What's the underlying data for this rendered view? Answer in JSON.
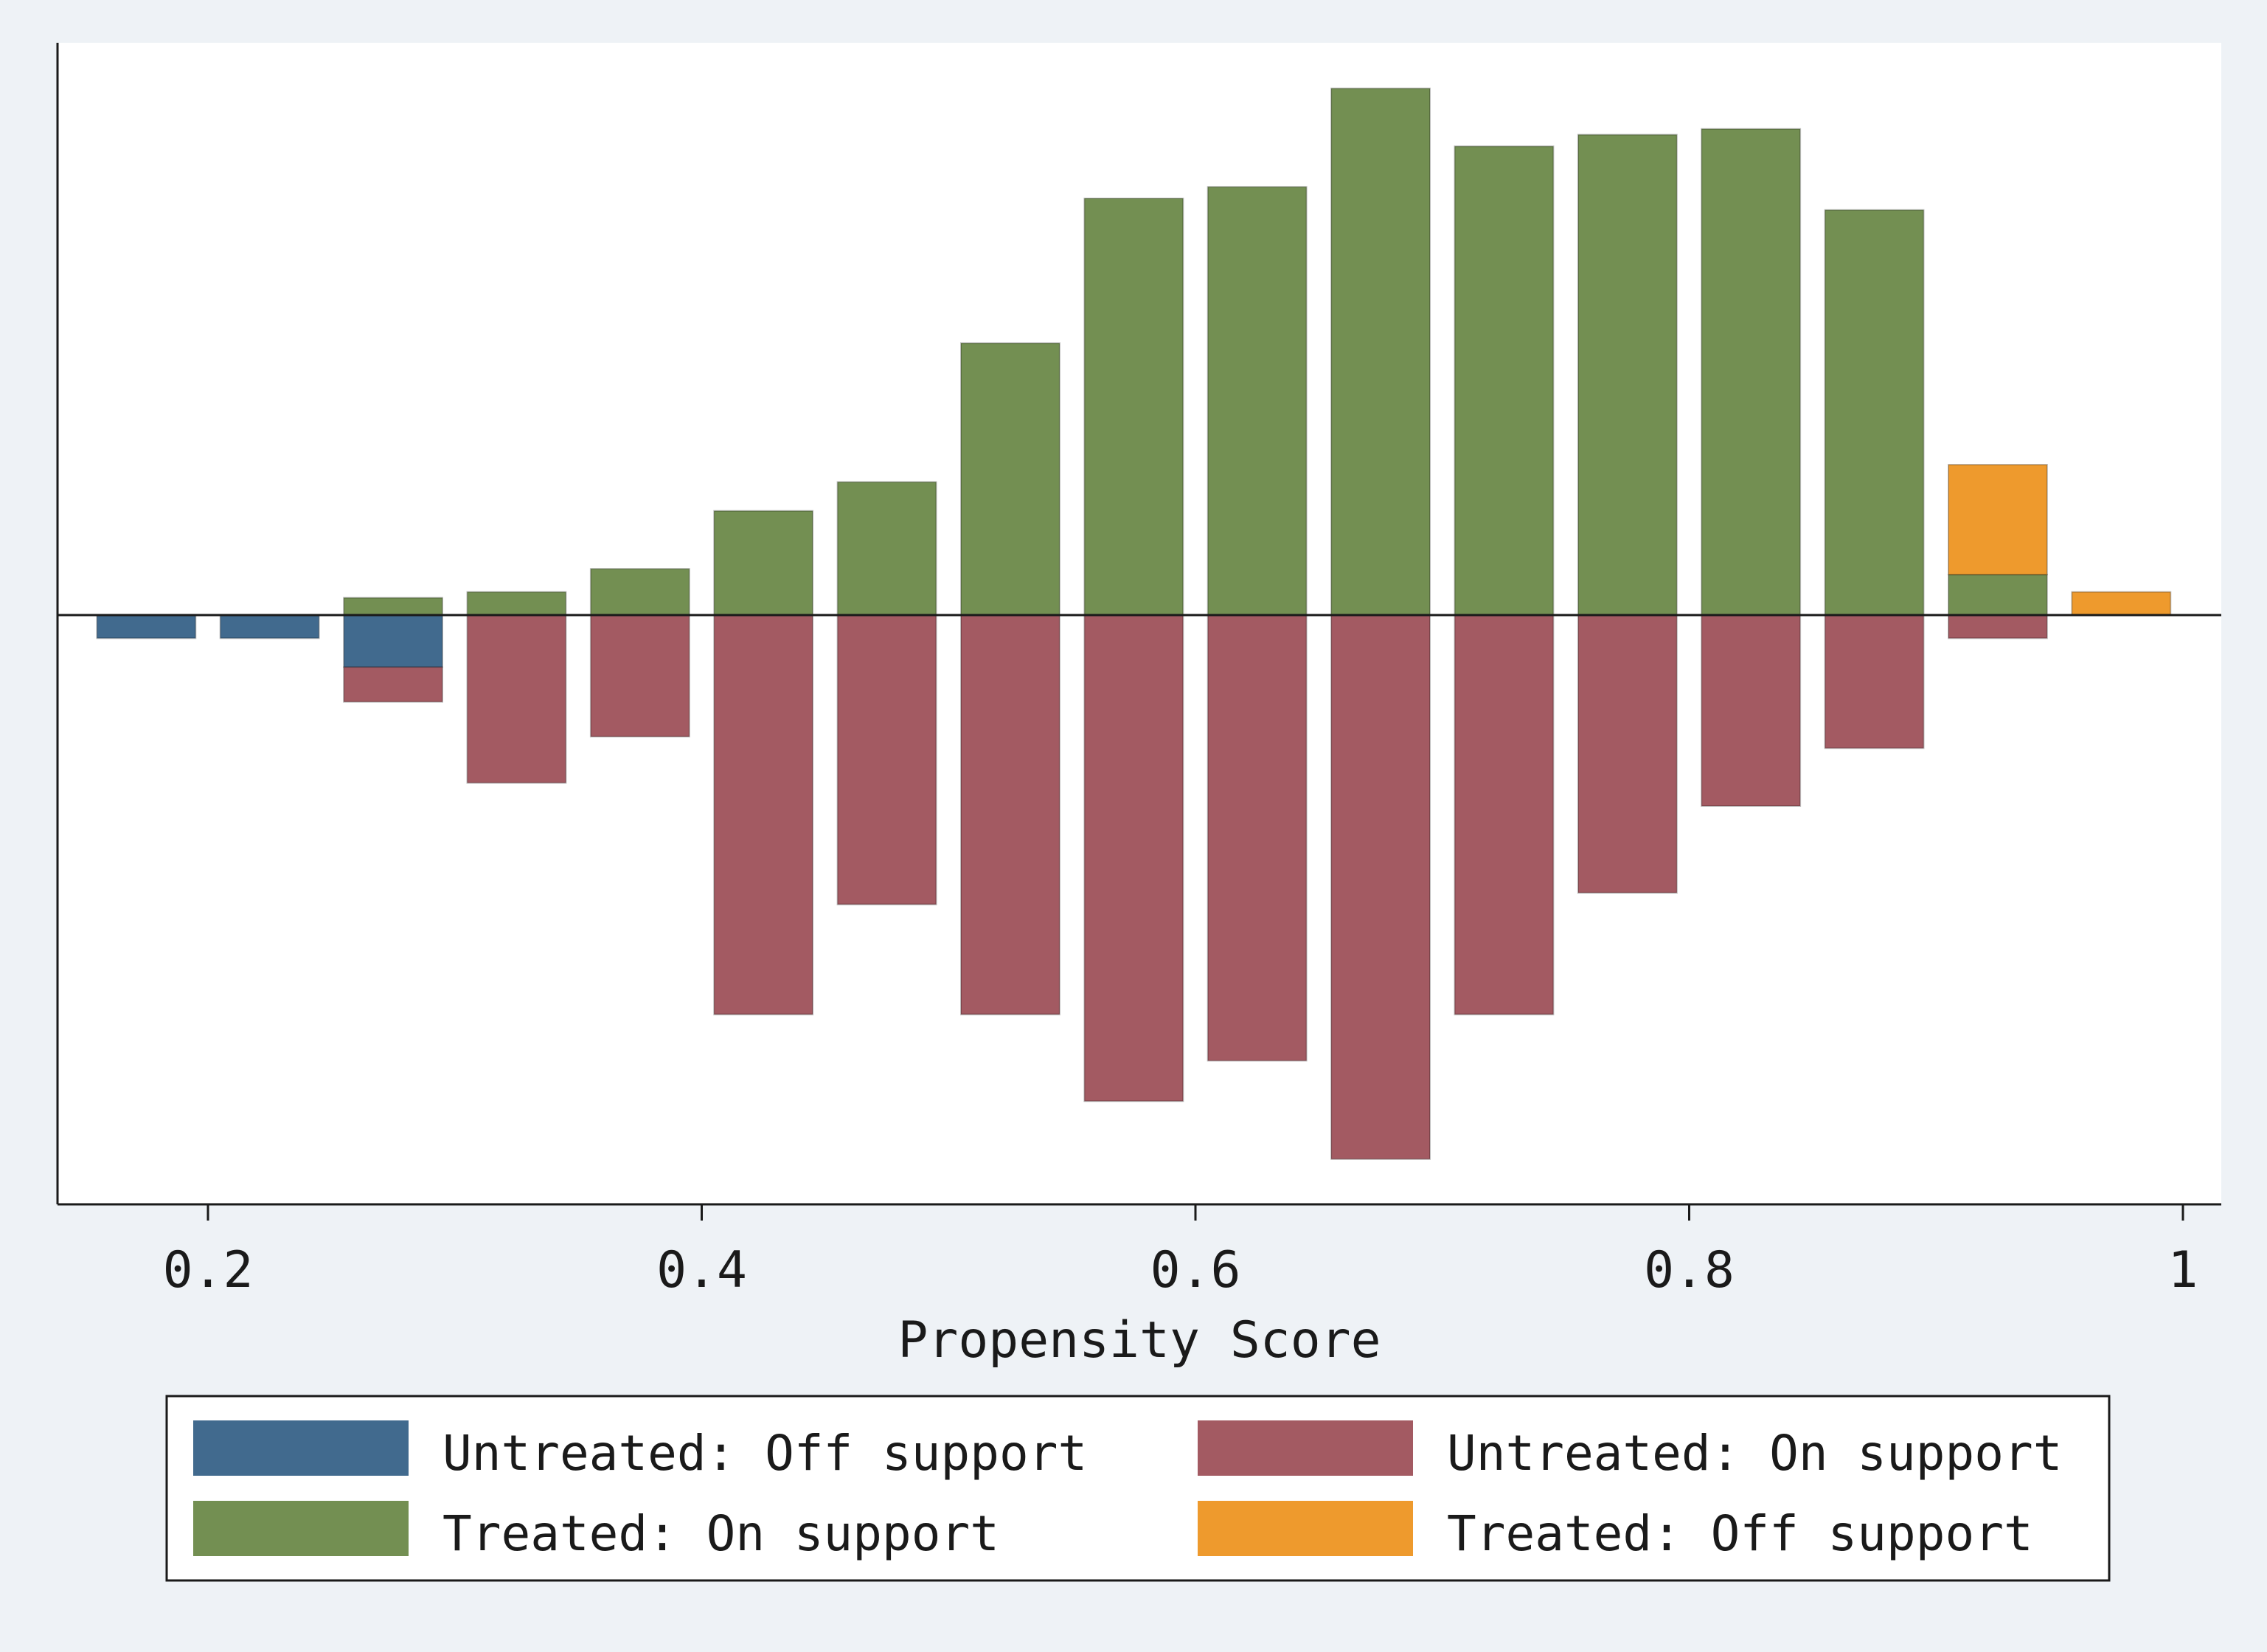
{
  "chart_data": {
    "type": "bar",
    "subtype": "mirrored-histogram",
    "title": "",
    "xlabel": "Propensity Score",
    "ylabel": "",
    "xlim": [
      0.15,
      1.0
    ],
    "ylim": [
      -0.95,
      0.92
    ],
    "xticks": [
      0.2,
      0.4,
      0.6,
      0.8,
      1.0
    ],
    "xtick_labels": [
      "0.2",
      "0.4",
      "0.6",
      "0.8",
      "1"
    ],
    "bin_width": 0.05,
    "bin_centers": [
      0.175,
      0.225,
      0.275,
      0.325,
      0.375,
      0.425,
      0.475,
      0.525,
      0.575,
      0.625,
      0.675,
      0.725,
      0.775,
      0.825,
      0.875,
      0.925,
      0.975
    ],
    "series": [
      {
        "name": "Untreated: Off support",
        "color": "#416a8e",
        "direction": "down",
        "values": [
          0.04,
          0.04,
          0.09,
          0,
          0,
          0,
          0,
          0,
          0,
          0,
          0,
          0,
          0,
          0,
          0,
          0,
          0
        ]
      },
      {
        "name": "Untreated: On support",
        "color": "#a35a62",
        "direction": "down",
        "values": [
          0,
          0,
          0.06,
          0.29,
          0.21,
          0.69,
          0.5,
          0.69,
          0.84,
          0.77,
          0.94,
          0.69,
          0.48,
          0.33,
          0.23,
          0.04,
          0
        ]
      },
      {
        "name": "Treated: On support",
        "color": "#738f52",
        "direction": "up",
        "values": [
          0,
          0,
          0.03,
          0.04,
          0.08,
          0.18,
          0.23,
          0.47,
          0.72,
          0.74,
          0.91,
          0.81,
          0.83,
          0.84,
          0.7,
          0.07,
          0
        ]
      },
      {
        "name": "Treated: Off support",
        "color": "#ee9a2d",
        "direction": "up",
        "values": [
          0,
          0,
          0,
          0,
          0,
          0,
          0,
          0,
          0,
          0,
          0,
          0,
          0,
          0,
          0,
          0.19,
          0.04
        ]
      }
    ],
    "legend_position": "bottom",
    "legend_columns": 2
  }
}
